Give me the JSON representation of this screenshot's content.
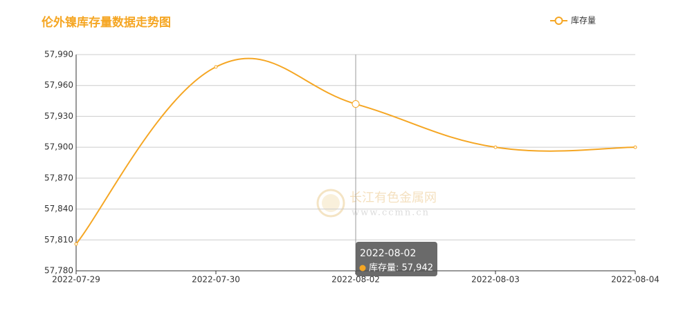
{
  "chart_data": {
    "type": "line",
    "title": "伦外镍库存量数据走势图",
    "categories": [
      "2022-07-29",
      "2022-07-30",
      "2022-08-02",
      "2022-08-03",
      "2022-08-04"
    ],
    "series": [
      {
        "name": "库存量",
        "color": "#f5a623",
        "values": [
          57806,
          57978,
          57942,
          57900,
          57900
        ]
      }
    ],
    "ylim": [
      57780,
      57990
    ],
    "yticks": [
      {
        "value": 57780,
        "label": "57,780"
      },
      {
        "value": 57810,
        "label": "57,810"
      },
      {
        "value": 57840,
        "label": "57,840"
      },
      {
        "value": 57870,
        "label": "57,870"
      },
      {
        "value": 57900,
        "label": "57,900"
      },
      {
        "value": 57930,
        "label": "57,930"
      },
      {
        "value": 57960,
        "label": "57,960"
      },
      {
        "value": 57990,
        "label": "57,990"
      }
    ],
    "grid": true,
    "legend": "top-right",
    "tooltip": {
      "title": "2022-08-02",
      "text": "库存量: 57,942"
    },
    "watermark": {
      "name": "长江有色金属网",
      "url": "www.ccmn.cn"
    }
  }
}
